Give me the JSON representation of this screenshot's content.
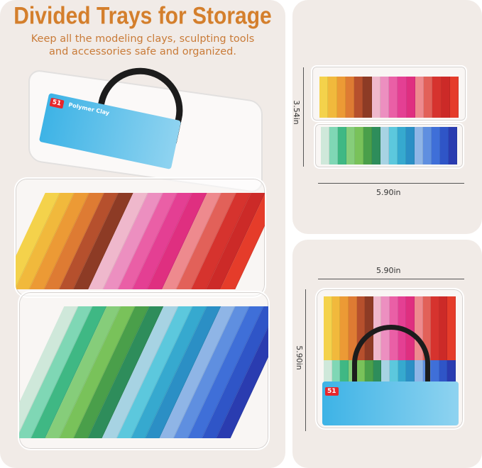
{
  "header": {
    "title": "Divided Trays for Storage",
    "subtitle_line1": "Keep all the modeling clays, sculpting tools",
    "subtitle_line2": "and accessories safe and organized."
  },
  "product_label": {
    "count": "51",
    "name": "Polymer Clay"
  },
  "dimensions": {
    "height_stacked": "3.54in",
    "width_top": "5.90in",
    "width_bottom": "5.90in",
    "depth": "5.90in"
  },
  "colors": {
    "title": "#d47f2c",
    "panel_bg": "#f1ebe7",
    "handle": "#1c1c1c"
  },
  "clay_colors": {
    "warm": [
      "#f4d24b",
      "#f1b93c",
      "#ec9a35",
      "#de7b33",
      "#b6502d",
      "#8d3b25",
      "#efb8cc",
      "#ec8fc0",
      "#ea5fa6",
      "#e43f93",
      "#df2f80",
      "#ee8a8e",
      "#e26159",
      "#d6332e",
      "#cc2a28",
      "#e53c2a"
    ],
    "cool": [
      "#cfe8da",
      "#7fd7b5",
      "#3fb884",
      "#86cd7a",
      "#79c25a",
      "#4a9f4a",
      "#2e8d5b",
      "#a7d3e3",
      "#5cc8dd",
      "#36a9cf",
      "#2b8fc5",
      "#8fb5e6",
      "#5f8fe0",
      "#3f6fd8",
      "#2f55c7",
      "#2a3cb0"
    ]
  }
}
